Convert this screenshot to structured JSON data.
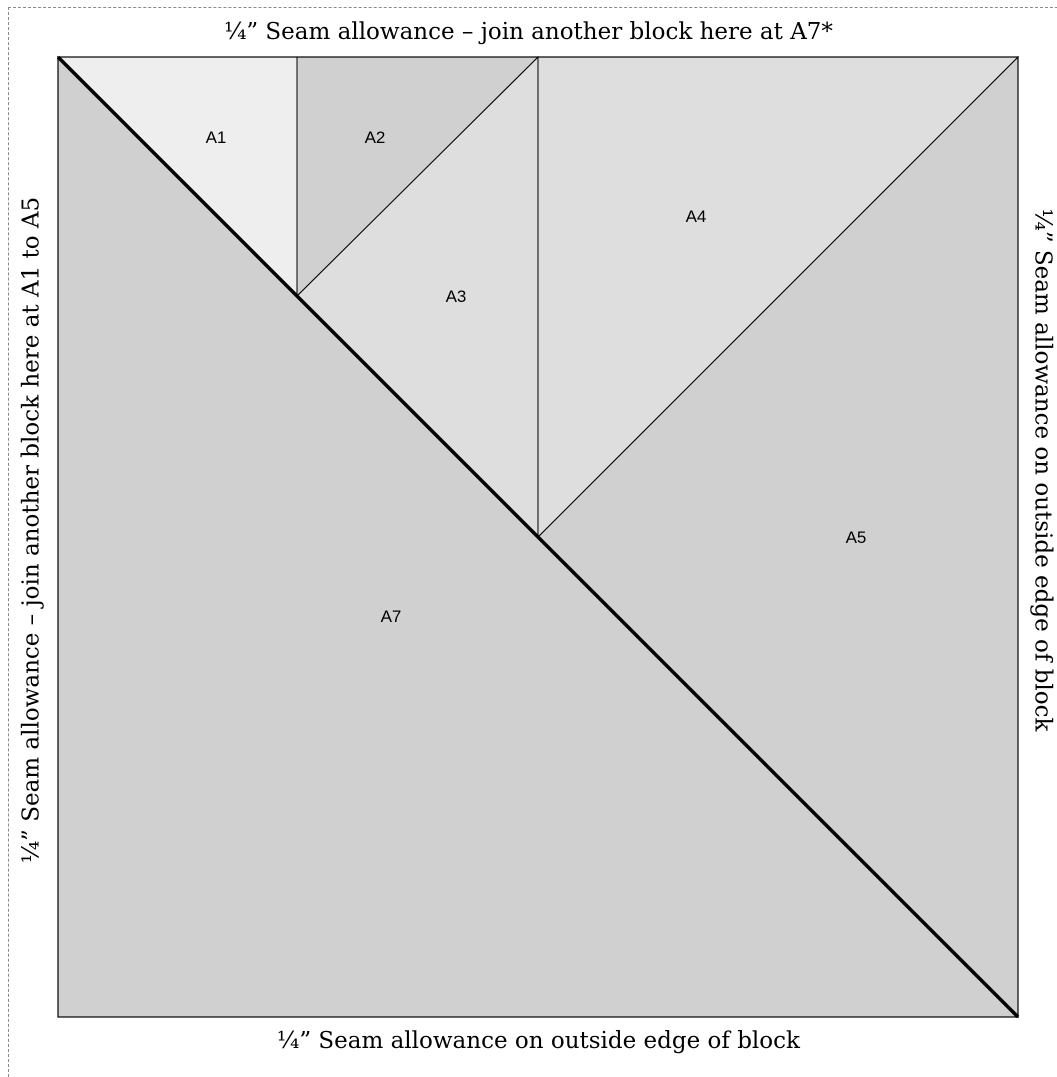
{
  "seam_labels": {
    "top": "¼” Seam allowance – join another block here at A7*",
    "left": "¼” Seam allowance – join another block here at A1 to A5",
    "right": "¼” Seam allowance on outside edge of block",
    "bottom": "¼” Seam allowance on outside edge of block"
  },
  "pieces": [
    {
      "id": "A1",
      "label": "A1",
      "fill": "#eeeeee"
    },
    {
      "id": "A2",
      "label": "A2",
      "fill": "#d0d0d0"
    },
    {
      "id": "A3",
      "label": "A3",
      "fill": "#dedede"
    },
    {
      "id": "A4",
      "label": "A4",
      "fill": "#dedede"
    },
    {
      "id": "A5",
      "label": "A5",
      "fill": "#d0d0d0"
    },
    {
      "id": "A7",
      "label": "A7",
      "fill": "#d0d0d0"
    }
  ],
  "colors": {
    "outline_dash": "#8a8a8a",
    "edge": "#000000"
  }
}
